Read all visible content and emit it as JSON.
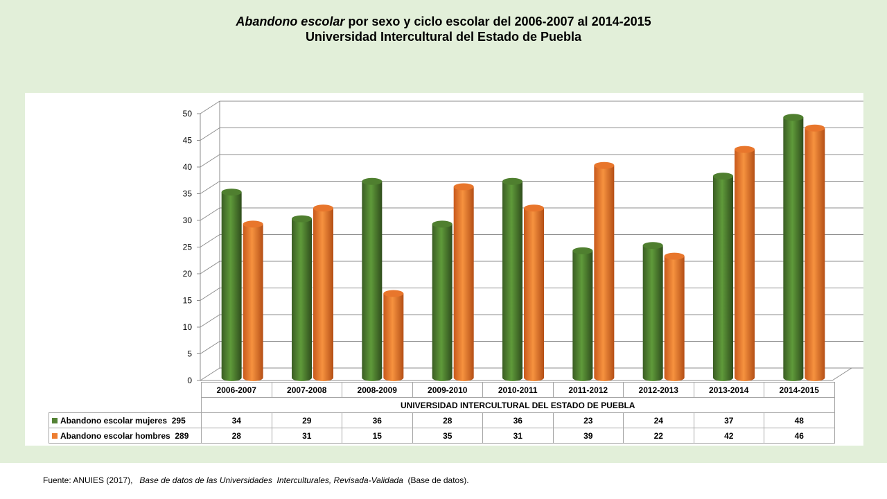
{
  "title": {
    "line1_italic": "Abandono escolar",
    "line1_rest": " por sexo y ciclo escolar del  2006-2007 al 2014-2015",
    "line2": "Universidad Intercultural del Estado de Puebla"
  },
  "chart_data": {
    "type": "bar",
    "categories": [
      "2006-2007",
      "2007-2008",
      "2008-2009",
      "2009-2010",
      "2010-2011",
      "2011-2012",
      "2012-2013",
      "2013-2014",
      "2014-2015"
    ],
    "xlabel": "UNIVERSIDAD INTERCULTURAL DEL ESTADO DE PUEBLA",
    "ylim": [
      0,
      50
    ],
    "yticks": [
      0,
      5,
      10,
      15,
      20,
      25,
      30,
      35,
      40,
      45,
      50
    ],
    "grid": true,
    "legend_placement": "data-table",
    "series": [
      {
        "name": "Abandono escolar mujeres",
        "total": "295",
        "color": "#548235",
        "values": [
          34,
          29,
          36,
          28,
          36,
          23,
          24,
          37,
          48
        ]
      },
      {
        "name": "Abandono escolar hombres",
        "total": "289",
        "color": "#ed7d31",
        "values": [
          28,
          31,
          15,
          35,
          31,
          39,
          22,
          42,
          46
        ]
      }
    ]
  },
  "source": {
    "prefix": "Fuente: ANUIES (2017),   ",
    "italic": "Base de datos de las Universidades  Interculturales, Revisada-Validada",
    "suffix": "  (Base de datos)."
  }
}
